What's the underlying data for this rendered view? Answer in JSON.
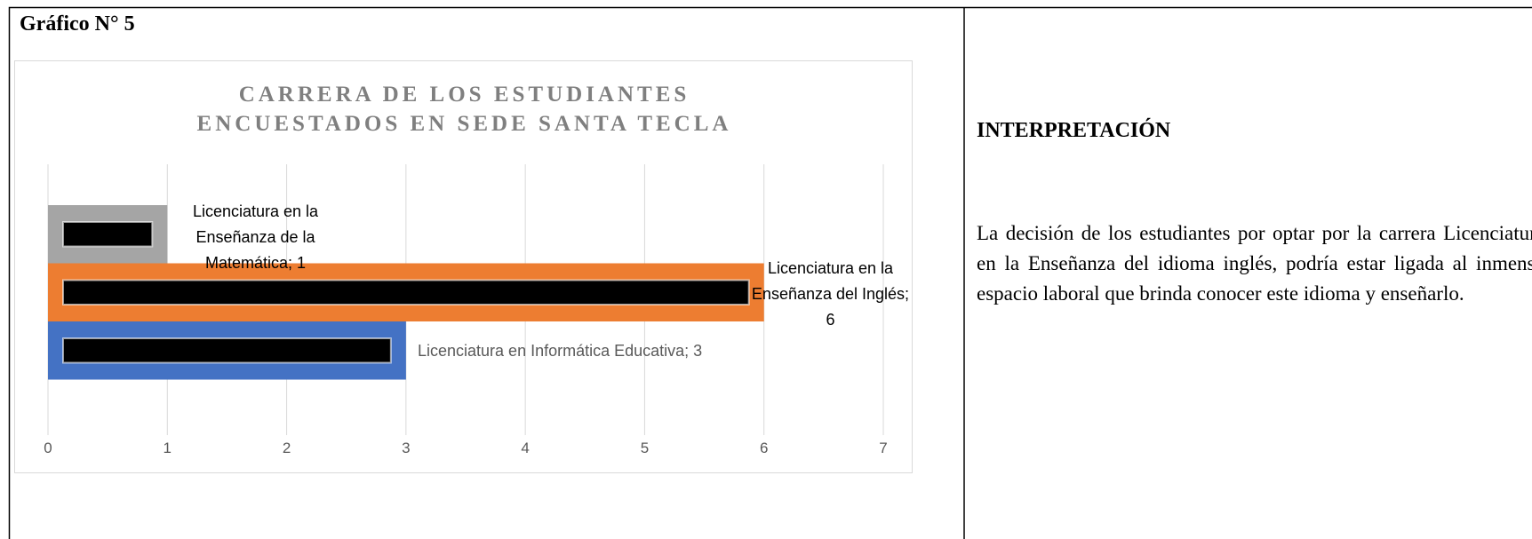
{
  "header": {
    "title": "Gráfico N° 5"
  },
  "chart_data": {
    "type": "bar",
    "orientation": "horizontal",
    "title": "CARRERA DE LOS ESTUDIANTES ENCUESTADOS EN SEDE SANTA TECLA",
    "values": [
      1,
      6,
      3
    ],
    "value_labels": [
      "Licenciatura en la Enseñanza de la Matemática; 1",
      "Licenciatura en la Enseñanza del Inglés; 6",
      "Licenciatura en Informática Educativa; 3"
    ],
    "colors": [
      "#a5a5a5",
      "#ed7d31",
      "#4472c4"
    ],
    "xlim": [
      0,
      7
    ],
    "xticks": [
      0,
      1,
      2,
      3,
      4,
      5,
      6,
      7
    ],
    "grid": true
  },
  "interpretation": {
    "heading": "INTERPRETACIÓN",
    "text": "La decisión de los estudiantes por optar por la carrera Licenciatura en la Enseñanza del idioma inglés, podría estar ligada al inmenso espacio laboral que brinda conocer este idioma y enseñarlo."
  }
}
